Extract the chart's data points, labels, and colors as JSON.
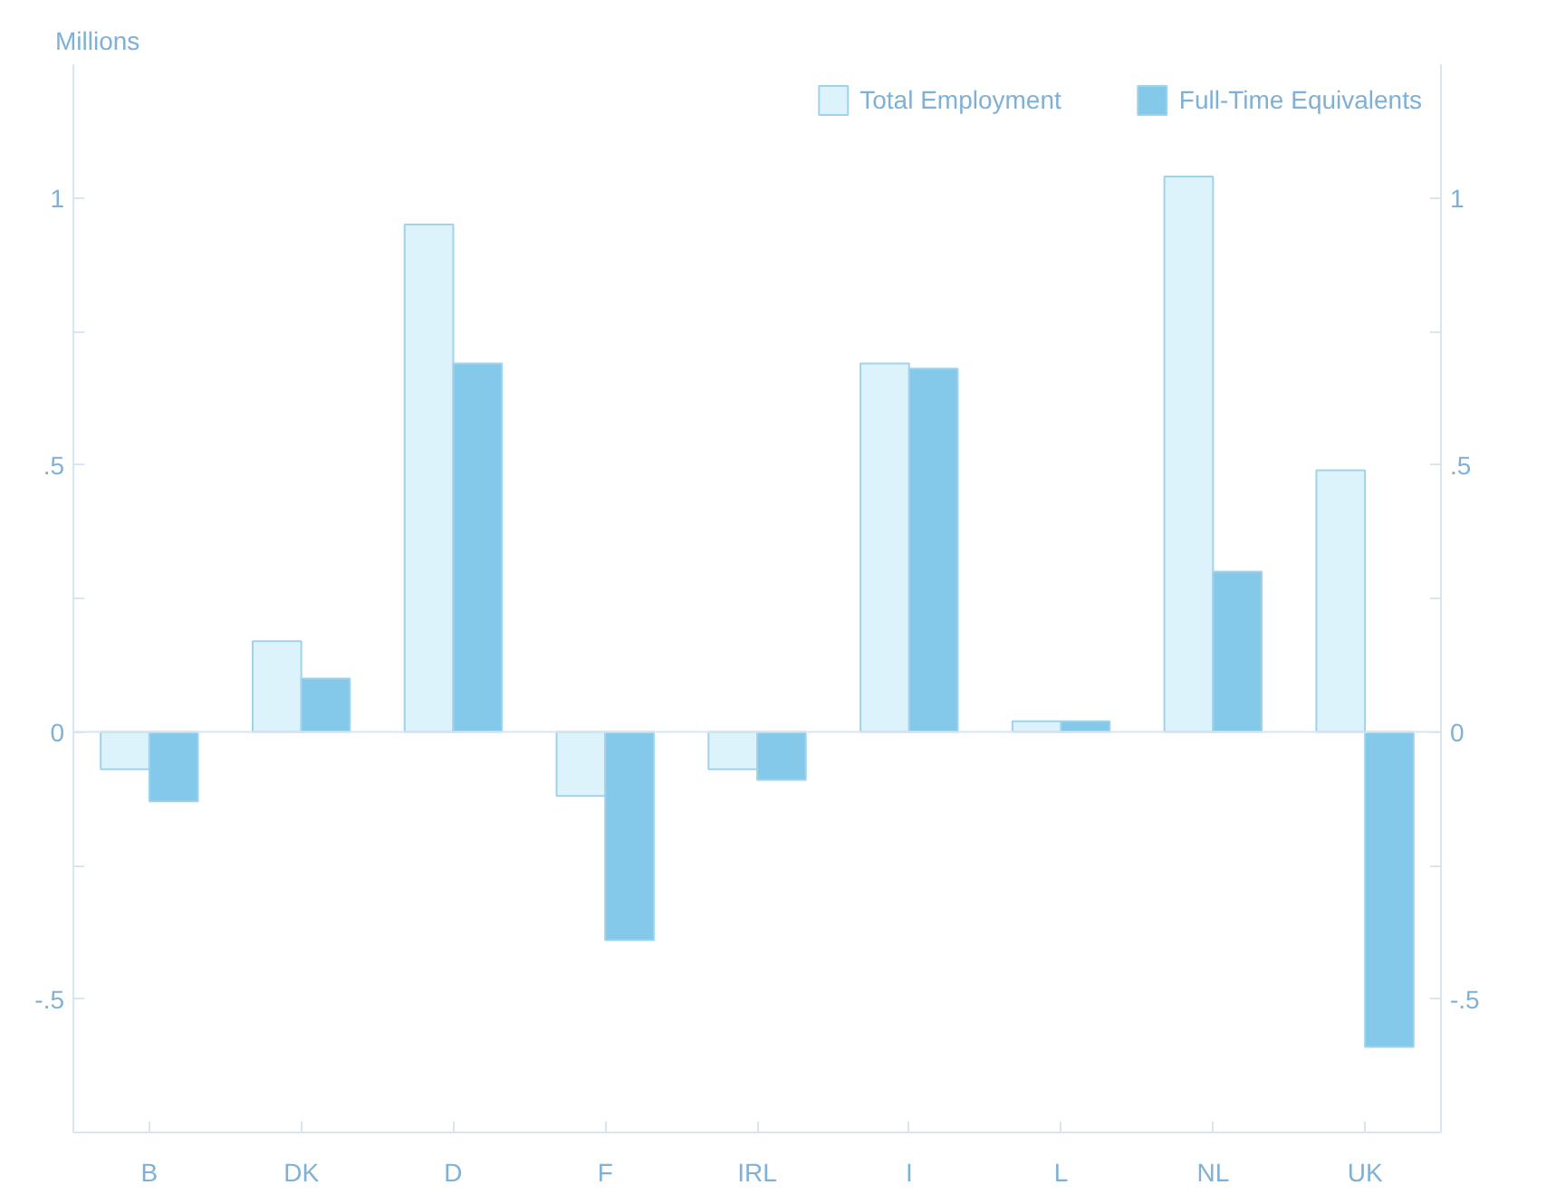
{
  "chart_data": {
    "type": "bar",
    "ylabel": "Millions",
    "categories": [
      "B",
      "DK",
      "D",
      "F",
      "IRL",
      "I",
      "L",
      "NL",
      "UK"
    ],
    "series": [
      {
        "name": "Total Employment",
        "color": "#dcf3fb",
        "values": [
          -0.07,
          0.17,
          0.95,
          -0.12,
          -0.07,
          0.69,
          0.02,
          1.04,
          0.49
        ]
      },
      {
        "name": "Full-Time Equivalents",
        "color": "#84c8ea",
        "values": [
          -0.13,
          0.1,
          0.69,
          -0.39,
          -0.09,
          0.68,
          0.02,
          0.3,
          -0.59
        ]
      }
    ],
    "ylim": [
      -0.75,
      1.25
    ],
    "yticks": [
      {
        "value": -0.5,
        "label": "-.5"
      },
      {
        "value": -0.25,
        "label": null
      },
      0,
      {
        "value": 0.25,
        "label": null
      },
      {
        "value": 0.5,
        "label": ".5"
      },
      {
        "value": 0.75,
        "label": null
      },
      1
    ],
    "y2lim": [
      -0.75,
      1.25
    ],
    "y2ticks": [
      {
        "value": -0.5,
        "label": "-.5"
      },
      {
        "value": -0.25,
        "label": null
      },
      0,
      {
        "value": 0.25,
        "label": null
      },
      {
        "value": 0.5,
        "label": ".5"
      },
      {
        "value": 0.75,
        "label": null
      },
      1
    ],
    "ref_lines": [
      {
        "axis": "y",
        "value": 0,
        "color": "#d6e6f2"
      }
    ],
    "legend": "top right",
    "grid": false
  }
}
